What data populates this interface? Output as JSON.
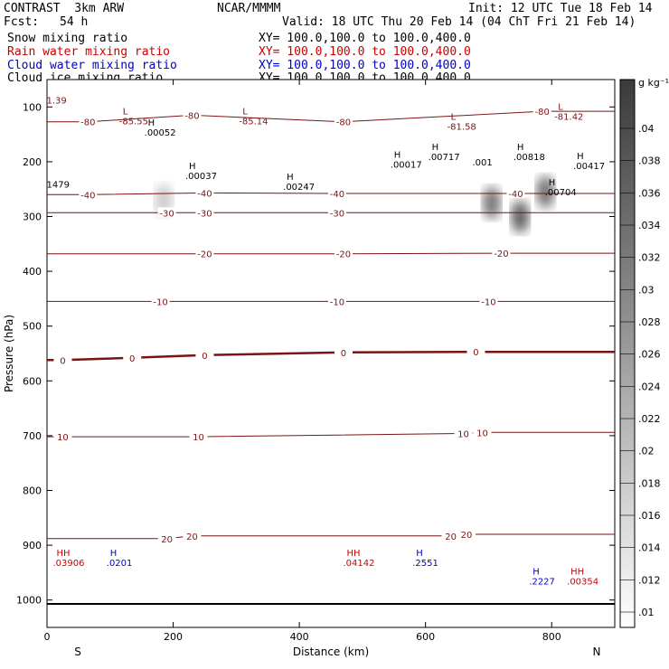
{
  "header": {
    "title": "CONTRAST  3km ARW",
    "org": "NCAR/MMMM",
    "init": "Init: 12 UTC Tue 18 Feb 14",
    "fcst_label": "Fcst:",
    "fcst_value": "54 h",
    "valid": "Valid: 18 UTC Thu 20 Feb 14 (04 ChT Fri 21 Feb 14)",
    "fields": [
      {
        "name": "Snow mixing ratio",
        "xy": "XY= 100.0,100.0 to 100.0,400.0",
        "color": "#000000"
      },
      {
        "name": "Rain water mixing ratio",
        "xy": "XY= 100.0,100.0 to 100.0,400.0",
        "color": "#cc0000"
      },
      {
        "name": "Cloud water mixing ratio",
        "xy": "XY= 100.0,100.0 to 100.0,400.0",
        "color": "#0000cc"
      },
      {
        "name": "Cloud ice mixing ratio",
        "xy": "XY= 100.0,100.0 to 100.0,400.0",
        "color": "#000000"
      }
    ]
  },
  "chart_data": {
    "type": "heatmap",
    "xlabel": "Distance (km)",
    "ylabel": "Pressure (hPa)",
    "x_ticks": [
      "0",
      "200",
      "400",
      "600",
      "800"
    ],
    "y_ticks": [
      "100",
      "200",
      "300",
      "400",
      "500",
      "600",
      "700",
      "800",
      "900",
      "1000"
    ],
    "xlim": [
      0,
      900
    ],
    "ylim_hPa": [
      1050,
      50
    ],
    "x_end_labels": {
      "left": "S",
      "right": "N"
    },
    "colorbar": {
      "unit": "g kg⁻¹",
      "labels": [
        ".01",
        ".012",
        ".014",
        ".016",
        ".018",
        ".02",
        ".022",
        ".024",
        ".026",
        ".028",
        ".03",
        ".032",
        ".034",
        ".036",
        ".038",
        ".04"
      ]
    },
    "colors": {
      "temperature": "#7a1414",
      "rain": "#cc0000",
      "cloud_water": "#0000cc",
      "shading": "#505050"
    },
    "temperature_contours_C": [
      {
        "value": -80,
        "label": "-80",
        "labels": [
          {
            "x": 230,
            "p": 115
          },
          {
            "x": 65,
            "p": 127
          },
          {
            "x": 470,
            "p": 127
          },
          {
            "x": 785,
            "p": 108
          }
        ]
      },
      {
        "value": -40,
        "label": "-40",
        "labels": [
          {
            "x": 65,
            "p": 260
          },
          {
            "x": 250,
            "p": 257
          },
          {
            "x": 460,
            "p": 258
          },
          {
            "x": 743,
            "p": 258
          }
        ]
      },
      {
        "value": -30,
        "label": "-30",
        "labels": [
          {
            "x": 190,
            "p": 293
          },
          {
            "x": 250,
            "p": 293
          },
          {
            "x": 460,
            "p": 293
          }
        ]
      },
      {
        "value": -20,
        "label": "-20",
        "labels": [
          {
            "x": 250,
            "p": 368
          },
          {
            "x": 470,
            "p": 368
          },
          {
            "x": 720,
            "p": 367
          }
        ]
      },
      {
        "value": -10,
        "label": "-10",
        "labels": [
          {
            "x": 180,
            "p": 455
          },
          {
            "x": 460,
            "p": 455
          },
          {
            "x": 700,
            "p": 455
          }
        ]
      },
      {
        "value": 0,
        "label": "0",
        "labels": [
          {
            "x": 25,
            "p": 562
          },
          {
            "x": 135,
            "p": 558
          },
          {
            "x": 250,
            "p": 553
          },
          {
            "x": 470,
            "p": 548
          },
          {
            "x": 680,
            "p": 547
          }
        ]
      },
      {
        "value": 10,
        "label": "10",
        "labels": [
          {
            "x": 25,
            "p": 702
          },
          {
            "x": 240,
            "p": 702
          },
          {
            "x": 660,
            "p": 696
          },
          {
            "x": 690,
            "p": 694
          }
        ]
      },
      {
        "value": 20,
        "label": "20",
        "labels": [
          {
            "x": 190,
            "p": 888
          },
          {
            "x": 230,
            "p": 883
          },
          {
            "x": 640,
            "p": 883
          },
          {
            "x": 665,
            "p": 880
          }
        ]
      }
    ],
    "extrema": [
      {
        "kind": "L",
        "value": "-85.55",
        "x": 120,
        "p": 120,
        "color": "#7a1414"
      },
      {
        "kind": "L",
        "value": "-85.14",
        "x": 310,
        "p": 120,
        "color": "#7a1414"
      },
      {
        "kind": "L",
        "value": "-81.58",
        "x": 640,
        "p": 130,
        "color": "#7a1414"
      },
      {
        "kind": "L",
        "value": "-81.42",
        "x": 810,
        "p": 112,
        "color": "#7a1414"
      },
      {
        "kind": "",
        "value": "1.39",
        "x": 5,
        "p": 82,
        "color": "#7a1414"
      },
      {
        "kind": "H",
        "value": ".00052",
        "x": 160,
        "p": 141,
        "color": "#000000"
      },
      {
        "kind": "H",
        "value": ".00037",
        "x": 225,
        "p": 220,
        "color": "#000000"
      },
      {
        "kind": "H",
        "value": ".00247",
        "x": 380,
        "p": 240,
        "color": "#000000"
      },
      {
        "kind": "H",
        "value": ".00017",
        "x": 550,
        "p": 199,
        "color": "#000000"
      },
      {
        "kind": "H",
        "value": ".00717",
        "x": 610,
        "p": 185,
        "color": "#000000"
      },
      {
        "kind": "",
        "value": ".001",
        "x": 680,
        "p": 195,
        "color": "#000000"
      },
      {
        "kind": "H",
        "value": ".00818",
        "x": 745,
        "p": 185,
        "color": "#000000"
      },
      {
        "kind": "H",
        "value": ".00417",
        "x": 840,
        "p": 202,
        "color": "#000000"
      },
      {
        "kind": "H",
        "value": ".00704",
        "x": 795,
        "p": 250,
        "color": "#000000"
      },
      {
        "kind": "",
        "value": "1479",
        "x": 5,
        "p": 236,
        "color": "#000000"
      },
      {
        "kind": "H",
        "value": ".0201",
        "x": 100,
        "p": 926,
        "color": "#0000cc"
      },
      {
        "kind": "H",
        "value": ".2551",
        "x": 585,
        "p": 926,
        "color": "#0000cc"
      },
      {
        "kind": "H",
        "value": ".2227",
        "x": 770,
        "p": 960,
        "color": "#0000cc"
      },
      {
        "kind": "HH",
        "value": ".03906",
        "x": 15,
        "p": 926,
        "color": "#cc0000"
      },
      {
        "kind": "HH",
        "value": ".04142",
        "x": 475,
        "p": 926,
        "color": "#cc0000"
      },
      {
        "kind": "HH",
        "value": ".00354",
        "x": 830,
        "p": 960,
        "color": "#cc0000"
      }
    ],
    "shaded_blobs": [
      {
        "x": 185,
        "p": 270,
        "amount": 0.012
      },
      {
        "x": 705,
        "p": 275,
        "amount": 0.034
      },
      {
        "x": 750,
        "p": 300,
        "amount": 0.04
      },
      {
        "x": 790,
        "p": 255,
        "amount": 0.036
      }
    ]
  }
}
